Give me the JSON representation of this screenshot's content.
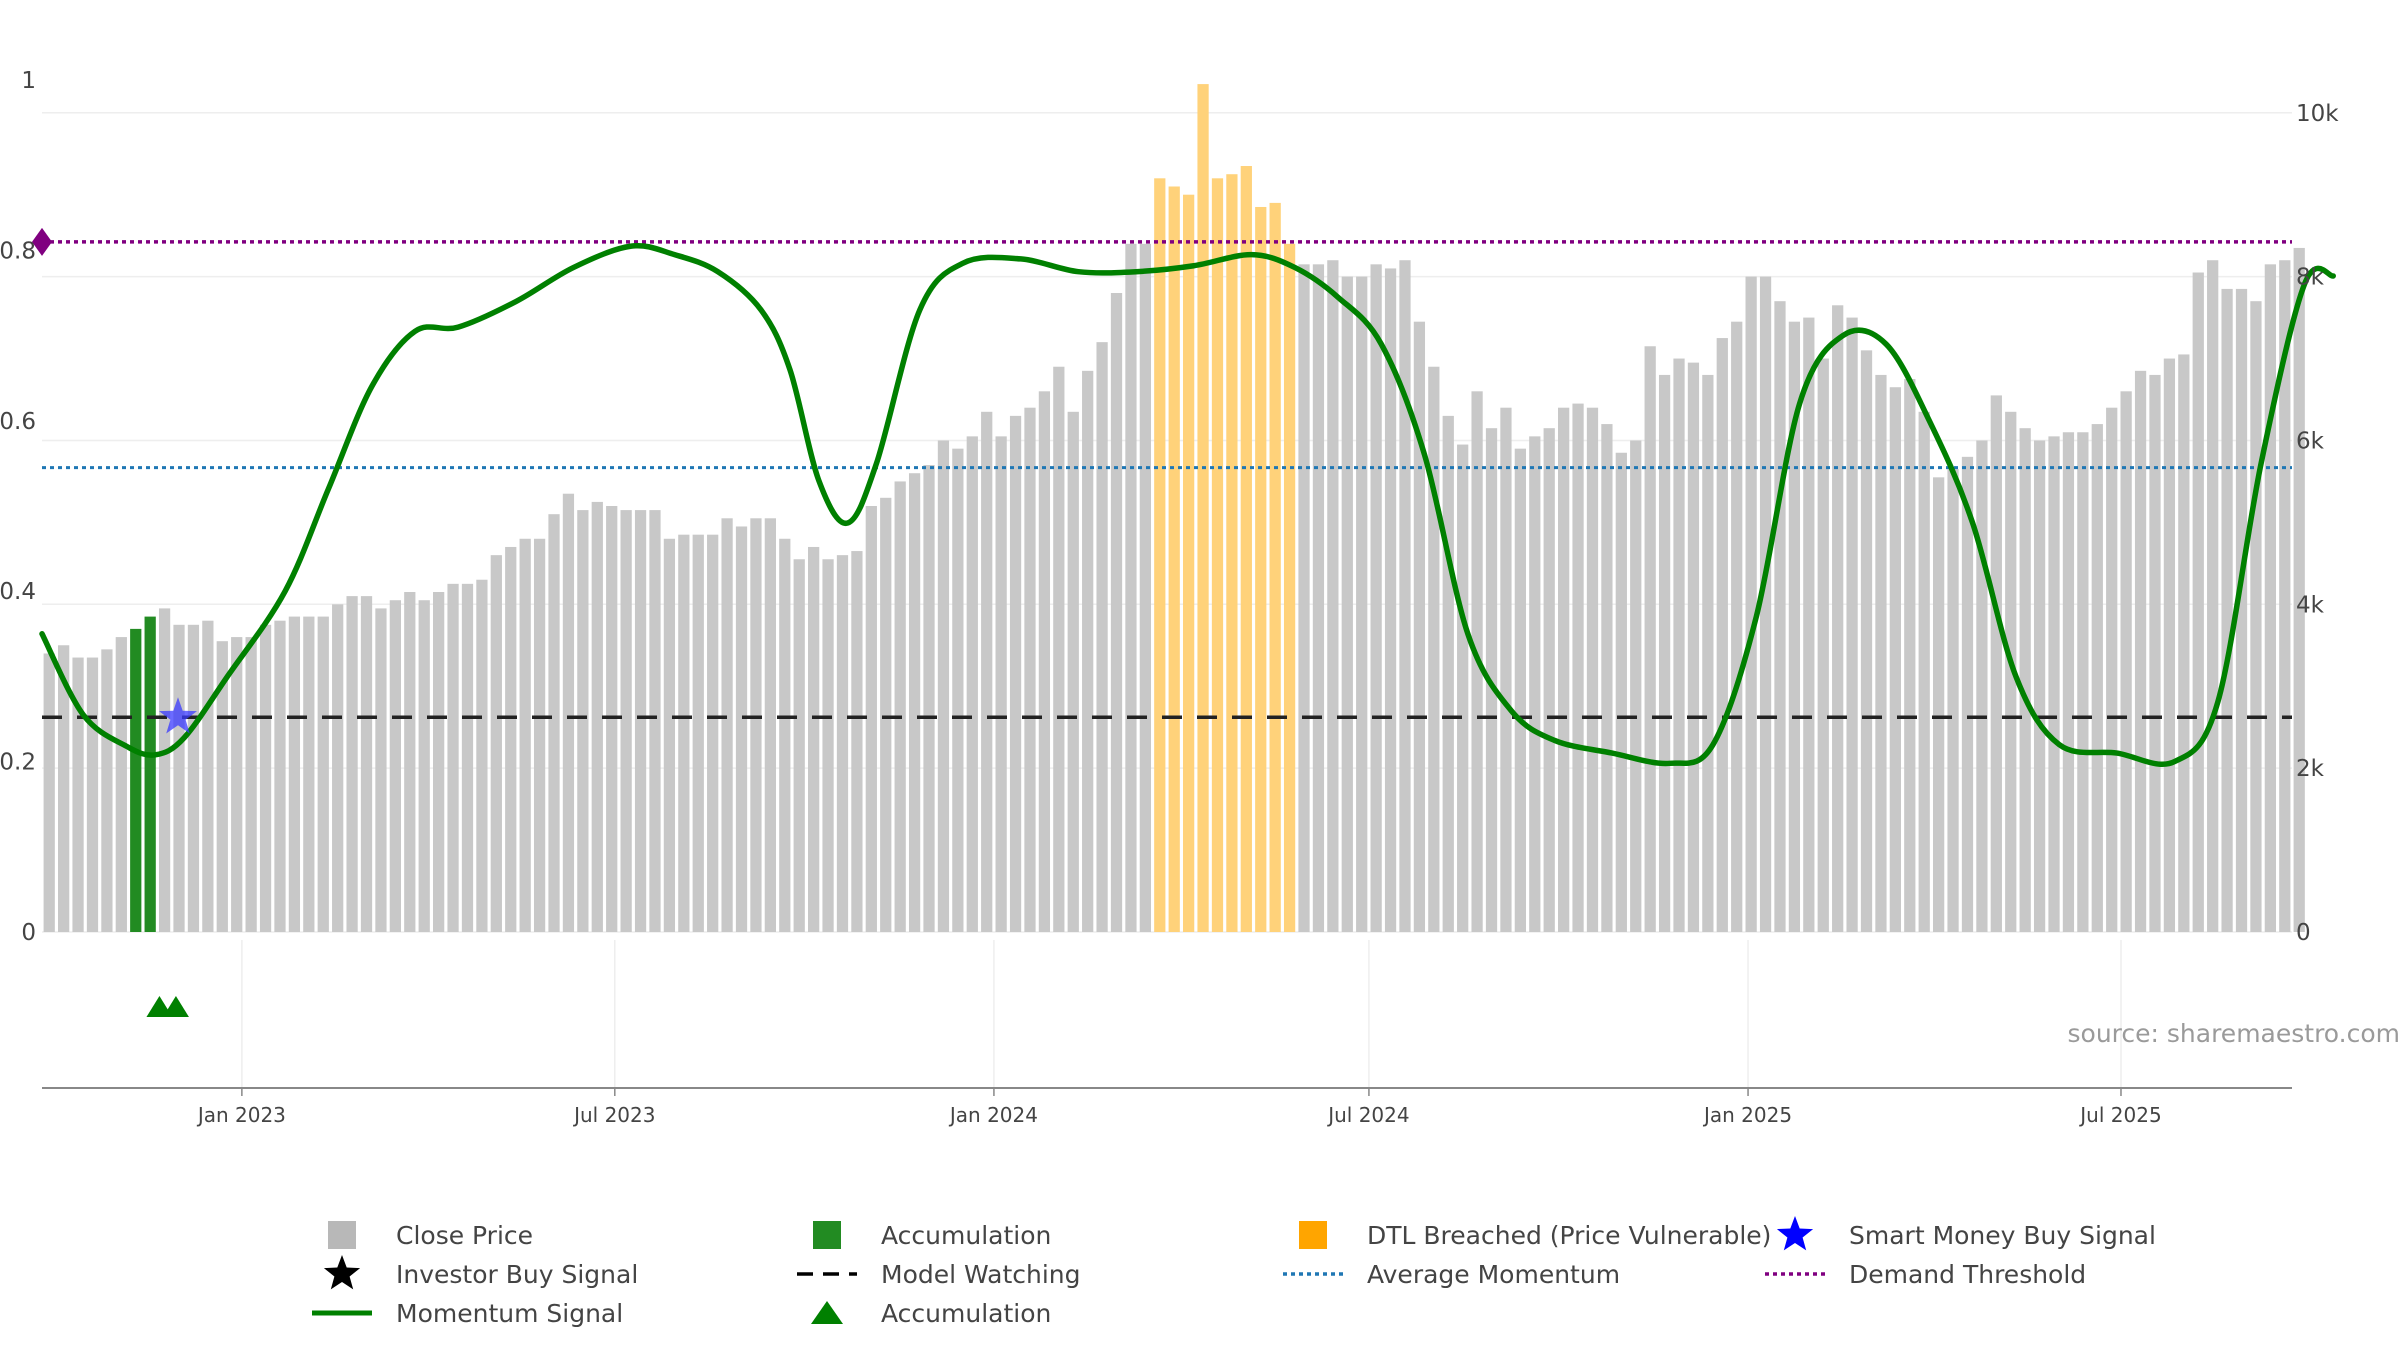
{
  "chart_data": {
    "type": "bar",
    "title": "",
    "source": "source: sharemaestro.com",
    "x_range": [
      "2022-09-26",
      "2025-09-22"
    ],
    "x_ticks": [
      {
        "date": "2023-01-01",
        "label": "Jan 2023"
      },
      {
        "date": "2023-07-01",
        "label": "Jul 2023"
      },
      {
        "date": "2024-01-01",
        "label": "Jan 2024"
      },
      {
        "date": "2024-07-01",
        "label": "Jul 2024"
      },
      {
        "date": "2025-01-01",
        "label": "Jan 2025"
      },
      {
        "date": "2025-07-01",
        "label": "Jul 2025"
      }
    ],
    "y_left": {
      "range": [
        0,
        1
      ],
      "ticks": [
        {
          "v": 0,
          "label": "0"
        },
        {
          "v": 0.2,
          "label": "0.2"
        },
        {
          "v": 0.4,
          "label": "0.4"
        },
        {
          "v": 0.6,
          "label": "0.6"
        },
        {
          "v": 0.8,
          "label": "0.8"
        },
        {
          "v": 1,
          "label": "1"
        }
      ]
    },
    "y_right": {
      "range": [
        0,
        10400
      ],
      "ticks": [
        {
          "v": 0,
          "label": "0"
        },
        {
          "v": 2000,
          "label": "2k"
        },
        {
          "v": 4000,
          "label": "4k"
        },
        {
          "v": 6000,
          "label": "6k"
        },
        {
          "v": 8000,
          "label": "8k"
        },
        {
          "v": 10000,
          "label": "10k"
        }
      ]
    },
    "close_price": [
      3400,
      3500,
      3350,
      3350,
      3450,
      3600,
      3000,
      3750,
      3950,
      3750,
      3750,
      3800,
      3550,
      3600,
      3600,
      3750,
      3800,
      3850,
      3850,
      3850,
      4000,
      4100,
      4100,
      3950,
      4050,
      4150,
      4050,
      4150,
      4250,
      4250,
      4300,
      4600,
      4700,
      4800,
      4800,
      5100,
      5350,
      5150,
      5250,
      5200,
      5150,
      5150,
      5150,
      4800,
      4850,
      4850,
      4850,
      5050,
      4950,
      5050,
      5050,
      4800,
      4550,
      4700,
      4550,
      4600,
      4650,
      5200,
      5300,
      5500,
      5600,
      5700,
      6000,
      5900,
      6050,
      6350,
      6050,
      6300,
      6400,
      6600,
      6900,
      6350,
      6850,
      7200,
      7800,
      8400,
      8400,
      9200,
      9100,
      9000,
      10350,
      9200,
      9250,
      9350,
      8850,
      8900,
      8400,
      8150,
      8150,
      8200,
      8000,
      8000,
      8150,
      8100,
      8200,
      7450,
      6900,
      6300,
      5950,
      6600,
      6150,
      6400,
      5900,
      6050,
      6150,
      6400,
      6450,
      6400,
      6200,
      5850,
      6000,
      7150,
      6800,
      7000,
      6950,
      6800,
      7250,
      7450,
      8000,
      8000,
      7700,
      7450,
      7500,
      7000,
      7650,
      7500,
      7100,
      6800,
      6650,
      6750,
      6350,
      5550,
      5650,
      5800,
      6000,
      6550,
      6350,
      6150,
      6000,
      6050,
      6100,
      6100,
      6200,
      6400,
      6600,
      6850,
      6800,
      7000,
      7050,
      8050,
      8200,
      7850,
      7850,
      7700,
      8150,
      8200,
      8350
    ],
    "accumulation_bars": [
      {
        "week_index": 6,
        "value": 3700
      },
      {
        "week_index": 7,
        "value": 3850
      }
    ],
    "dtl_breached_weeks": [
      77,
      86
    ],
    "momentum_signal": [
      {
        "date": "2022-09-26",
        "v": 0.35
      },
      {
        "date": "2022-10-16",
        "v": 0.255
      },
      {
        "date": "2022-11-06",
        "v": 0.218
      },
      {
        "date": "2022-11-20",
        "v": 0.208
      },
      {
        "date": "2022-12-04",
        "v": 0.228
      },
      {
        "date": "2022-12-25",
        "v": 0.3
      },
      {
        "date": "2023-01-22",
        "v": 0.4
      },
      {
        "date": "2023-02-12",
        "v": 0.52
      },
      {
        "date": "2023-03-05",
        "v": 0.64
      },
      {
        "date": "2023-03-26",
        "v": 0.705
      },
      {
        "date": "2023-04-16",
        "v": 0.71
      },
      {
        "date": "2023-05-14",
        "v": 0.74
      },
      {
        "date": "2023-06-11",
        "v": 0.78
      },
      {
        "date": "2023-07-09",
        "v": 0.805
      },
      {
        "date": "2023-07-30",
        "v": 0.795
      },
      {
        "date": "2023-08-20",
        "v": 0.775
      },
      {
        "date": "2023-09-10",
        "v": 0.73
      },
      {
        "date": "2023-09-24",
        "v": 0.66
      },
      {
        "date": "2023-10-08",
        "v": 0.53
      },
      {
        "date": "2023-10-22",
        "v": 0.48
      },
      {
        "date": "2023-11-05",
        "v": 0.55
      },
      {
        "date": "2023-11-26",
        "v": 0.73
      },
      {
        "date": "2023-12-17",
        "v": 0.785
      },
      {
        "date": "2024-01-14",
        "v": 0.79
      },
      {
        "date": "2024-02-11",
        "v": 0.775
      },
      {
        "date": "2024-03-10",
        "v": 0.775
      },
      {
        "date": "2024-04-07",
        "v": 0.782
      },
      {
        "date": "2024-05-05",
        "v": 0.795
      },
      {
        "date": "2024-05-26",
        "v": 0.78
      },
      {
        "date": "2024-06-16",
        "v": 0.745
      },
      {
        "date": "2024-07-07",
        "v": 0.69
      },
      {
        "date": "2024-07-28",
        "v": 0.56
      },
      {
        "date": "2024-08-18",
        "v": 0.35
      },
      {
        "date": "2024-09-08",
        "v": 0.26
      },
      {
        "date": "2024-09-29",
        "v": 0.225
      },
      {
        "date": "2024-10-27",
        "v": 0.21
      },
      {
        "date": "2024-11-24",
        "v": 0.198
      },
      {
        "date": "2024-12-15",
        "v": 0.22
      },
      {
        "date": "2025-01-05",
        "v": 0.37
      },
      {
        "date": "2025-01-26",
        "v": 0.62
      },
      {
        "date": "2025-02-16",
        "v": 0.7
      },
      {
        "date": "2025-03-09",
        "v": 0.69
      },
      {
        "date": "2025-03-30",
        "v": 0.6
      },
      {
        "date": "2025-04-20",
        "v": 0.48
      },
      {
        "date": "2025-05-11",
        "v": 0.3
      },
      {
        "date": "2025-06-01",
        "v": 0.22
      },
      {
        "date": "2025-06-29",
        "v": 0.21
      },
      {
        "date": "2025-07-27",
        "v": 0.2
      },
      {
        "date": "2025-08-17",
        "v": 0.27
      },
      {
        "date": "2025-09-07",
        "v": 0.55
      },
      {
        "date": "2025-09-28",
        "v": 0.76
      },
      {
        "date": "2025-10-12",
        "v": 0.77
      }
    ],
    "average_momentum": 0.545,
    "demand_threshold": 0.81,
    "model_watching": 0.252,
    "smart_money_buy_signal": {
      "date": "2022-12-01",
      "v": 0.252
    },
    "accumulation_markers": [
      "2022-11-22",
      "2022-11-30"
    ],
    "legend": [
      {
        "label": "Close Price",
        "color": "#b8b8b8"
      },
      {
        "label": "Accumulation",
        "color": "#228b22"
      },
      {
        "label": "DTL Breached (Price Vulnerable)",
        "color": "#ffa500"
      },
      {
        "label": "Smart Money Buy Signal",
        "color": "#0000ff"
      },
      {
        "label": "Investor Buy Signal",
        "color": "#000000"
      },
      {
        "label": "Model Watching",
        "color": "#000000"
      },
      {
        "label": "Average Momentum",
        "color": "#1f77b4"
      },
      {
        "label": "Demand Threshold",
        "color": "#800080"
      },
      {
        "label": "Momentum Signal",
        "color": "#008000"
      },
      {
        "label": "Accumulation",
        "color": "#008000"
      }
    ]
  }
}
